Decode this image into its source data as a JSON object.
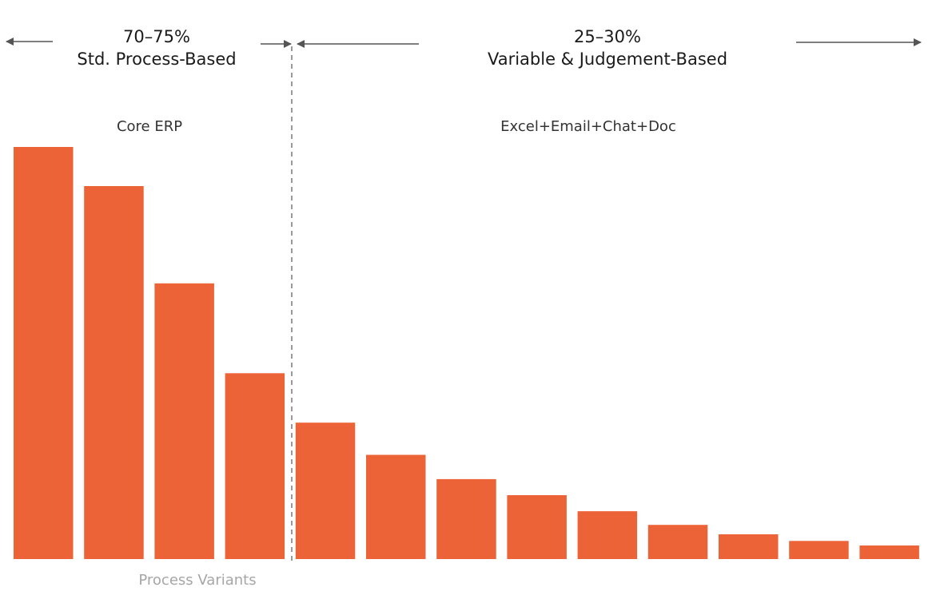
{
  "chart_data": {
    "type": "bar",
    "title": "",
    "xlabel": "Process Variants",
    "ylabel": "",
    "grid": false,
    "legend": "none",
    "bar_color": "#EC6337",
    "divider_color": "#999999",
    "arrow_color": "#555555",
    "ylim": [
      0,
      100
    ],
    "series": [
      {
        "values": [
          100,
          90.5,
          66.9,
          45.1,
          33.1,
          25.3,
          19.4,
          15.5,
          11.6,
          8.3,
          6.0,
          4.4,
          3.3
        ]
      }
    ],
    "segments": [
      {
        "percent": "70–75%",
        "label": "Std. Process-Based",
        "group_label": "Core ERP",
        "bar_count": 4
      },
      {
        "percent": "25–30%",
        "label": "Variable & Judgement-Based",
        "group_label": "Excel+Email+Chat+Doc",
        "bar_count": 9
      }
    ]
  }
}
